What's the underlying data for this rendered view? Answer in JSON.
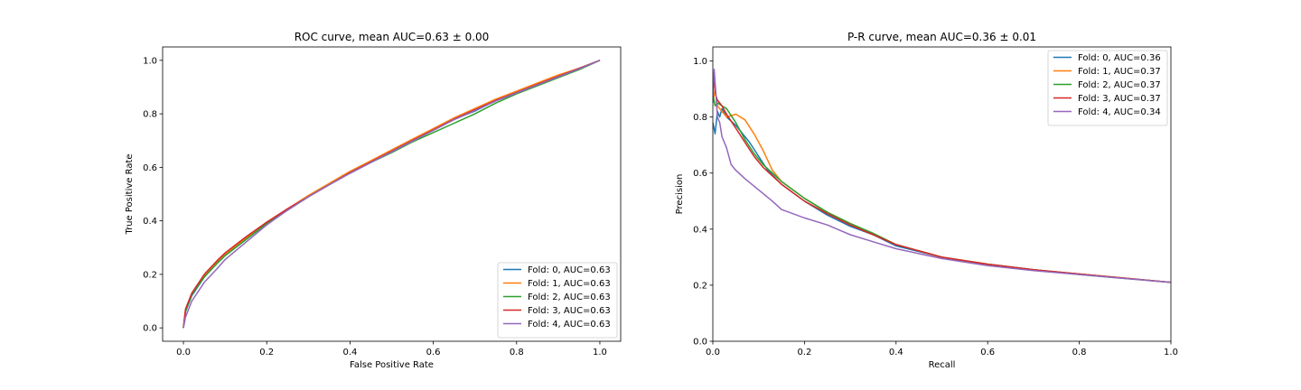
{
  "chart_data": [
    {
      "type": "line",
      "title": "ROC curve, mean AUC=0.63 ± 0.00",
      "xlabel": "False Positive Rate",
      "ylabel": "True Positive Rate",
      "xlim": [
        -0.05,
        1.05
      ],
      "ylim": [
        -0.05,
        1.05
      ],
      "xticks": [
        "0.0",
        "0.2",
        "0.4",
        "0.6",
        "0.8",
        "1.0"
      ],
      "yticks": [
        "0.0",
        "0.2",
        "0.4",
        "0.6",
        "0.8",
        "1.0"
      ],
      "grid": false,
      "legend_position": "lower-right",
      "series": [
        {
          "name": "Fold: 0, AUC=0.63",
          "color": "#1f77b4",
          "x": [
            0,
            0.005,
            0.02,
            0.05,
            0.08,
            0.1,
            0.15,
            0.2,
            0.25,
            0.3,
            0.35,
            0.4,
            0.45,
            0.5,
            0.55,
            0.6,
            0.65,
            0.7,
            0.75,
            0.8,
            0.85,
            0.9,
            0.95,
            1.0
          ],
          "y": [
            0,
            0.06,
            0.12,
            0.19,
            0.24,
            0.27,
            0.33,
            0.39,
            0.44,
            0.49,
            0.535,
            0.58,
            0.62,
            0.66,
            0.7,
            0.74,
            0.78,
            0.81,
            0.85,
            0.88,
            0.91,
            0.94,
            0.97,
            1.0
          ]
        },
        {
          "name": "Fold: 1, AUC=0.63",
          "color": "#ff7f0e",
          "x": [
            0,
            0.005,
            0.02,
            0.05,
            0.08,
            0.1,
            0.15,
            0.2,
            0.25,
            0.3,
            0.35,
            0.4,
            0.45,
            0.5,
            0.55,
            0.6,
            0.65,
            0.7,
            0.75,
            0.8,
            0.85,
            0.9,
            0.95,
            1.0
          ],
          "y": [
            0,
            0.065,
            0.125,
            0.195,
            0.245,
            0.275,
            0.335,
            0.395,
            0.445,
            0.495,
            0.54,
            0.585,
            0.625,
            0.665,
            0.705,
            0.745,
            0.785,
            0.82,
            0.855,
            0.885,
            0.915,
            0.945,
            0.97,
            1.0
          ]
        },
        {
          "name": "Fold: 2, AUC=0.63",
          "color": "#2ca02c",
          "x": [
            0,
            0.005,
            0.02,
            0.05,
            0.08,
            0.1,
            0.15,
            0.2,
            0.25,
            0.3,
            0.35,
            0.4,
            0.45,
            0.5,
            0.55,
            0.6,
            0.65,
            0.7,
            0.75,
            0.8,
            0.85,
            0.9,
            0.95,
            1.0
          ],
          "y": [
            0,
            0.06,
            0.125,
            0.19,
            0.24,
            0.27,
            0.33,
            0.39,
            0.44,
            0.49,
            0.535,
            0.578,
            0.618,
            0.655,
            0.695,
            0.73,
            0.765,
            0.8,
            0.84,
            0.875,
            0.905,
            0.935,
            0.965,
            1.0
          ]
        },
        {
          "name": "Fold: 3, AUC=0.63",
          "color": "#d62728",
          "x": [
            0,
            0.005,
            0.02,
            0.05,
            0.08,
            0.1,
            0.15,
            0.2,
            0.25,
            0.3,
            0.35,
            0.4,
            0.45,
            0.5,
            0.55,
            0.6,
            0.65,
            0.7,
            0.75,
            0.8,
            0.85,
            0.9,
            0.95,
            1.0
          ],
          "y": [
            0,
            0.07,
            0.13,
            0.2,
            0.25,
            0.28,
            0.34,
            0.395,
            0.445,
            0.49,
            0.535,
            0.58,
            0.62,
            0.66,
            0.7,
            0.74,
            0.78,
            0.815,
            0.85,
            0.88,
            0.91,
            0.94,
            0.97,
            1.0
          ]
        },
        {
          "name": "Fold: 4, AUC=0.63",
          "color": "#9467bd",
          "x": [
            0,
            0.005,
            0.02,
            0.05,
            0.08,
            0.1,
            0.15,
            0.2,
            0.25,
            0.3,
            0.35,
            0.4,
            0.45,
            0.5,
            0.55,
            0.6,
            0.65,
            0.7,
            0.75,
            0.8,
            0.85,
            0.9,
            0.95,
            1.0
          ],
          "y": [
            0,
            0.04,
            0.1,
            0.17,
            0.22,
            0.255,
            0.32,
            0.385,
            0.44,
            0.49,
            0.535,
            0.578,
            0.618,
            0.658,
            0.698,
            0.738,
            0.778,
            0.812,
            0.848,
            0.878,
            0.908,
            0.938,
            0.968,
            1.0
          ]
        }
      ]
    },
    {
      "type": "line",
      "title": "P-R curve, mean AUC=0.36 ± 0.01",
      "xlabel": "Recall",
      "ylabel": "Precision",
      "xlim": [
        0.0,
        1.0
      ],
      "ylim": [
        0.0,
        1.05
      ],
      "xticks": [
        "0.0",
        "0.2",
        "0.4",
        "0.6",
        "0.8",
        "1.0"
      ],
      "yticks": [
        "0.0",
        "0.2",
        "0.4",
        "0.6",
        "0.8",
        "1.0"
      ],
      "grid": false,
      "legend_position": "upper-right",
      "series": [
        {
          "name": "Fold: 0, AUC=0.36",
          "color": "#1f77b4",
          "x": [
            0.0,
            0.005,
            0.01,
            0.015,
            0.02,
            0.03,
            0.05,
            0.08,
            0.1,
            0.12,
            0.15,
            0.2,
            0.25,
            0.3,
            0.35,
            0.4,
            0.5,
            0.6,
            0.7,
            0.8,
            0.9,
            1.0
          ],
          "y": [
            0.78,
            0.74,
            0.82,
            0.8,
            0.83,
            0.8,
            0.77,
            0.71,
            0.66,
            0.61,
            0.56,
            0.5,
            0.45,
            0.41,
            0.38,
            0.34,
            0.3,
            0.275,
            0.255,
            0.24,
            0.225,
            0.21
          ]
        },
        {
          "name": "Fold: 1, AUC=0.37",
          "color": "#ff7f0e",
          "x": [
            0.0,
            0.005,
            0.01,
            0.02,
            0.03,
            0.05,
            0.07,
            0.09,
            0.11,
            0.13,
            0.15,
            0.2,
            0.25,
            0.3,
            0.35,
            0.4,
            0.5,
            0.6,
            0.7,
            0.8,
            0.9,
            1.0
          ],
          "y": [
            0.85,
            0.9,
            0.84,
            0.82,
            0.8,
            0.81,
            0.79,
            0.74,
            0.68,
            0.61,
            0.57,
            0.51,
            0.46,
            0.42,
            0.385,
            0.345,
            0.3,
            0.275,
            0.255,
            0.24,
            0.225,
            0.21
          ]
        },
        {
          "name": "Fold: 2, AUC=0.37",
          "color": "#2ca02c",
          "x": [
            0.0,
            0.005,
            0.01,
            0.02,
            0.03,
            0.05,
            0.07,
            0.09,
            0.11,
            0.13,
            0.15,
            0.2,
            0.25,
            0.3,
            0.35,
            0.4,
            0.5,
            0.6,
            0.7,
            0.8,
            0.9,
            1.0
          ],
          "y": [
            0.88,
            0.84,
            0.85,
            0.84,
            0.83,
            0.78,
            0.72,
            0.67,
            0.63,
            0.6,
            0.57,
            0.51,
            0.46,
            0.42,
            0.385,
            0.345,
            0.3,
            0.275,
            0.255,
            0.238,
            0.224,
            0.21
          ]
        },
        {
          "name": "Fold: 3, AUC=0.37",
          "color": "#d62728",
          "x": [
            0.0,
            0.003,
            0.006,
            0.01,
            0.02,
            0.03,
            0.05,
            0.07,
            0.09,
            0.11,
            0.13,
            0.15,
            0.2,
            0.25,
            0.3,
            0.35,
            0.4,
            0.5,
            0.6,
            0.7,
            0.8,
            0.9,
            1.0
          ],
          "y": [
            0.9,
            0.93,
            0.88,
            0.86,
            0.84,
            0.81,
            0.76,
            0.71,
            0.66,
            0.62,
            0.59,
            0.56,
            0.5,
            0.455,
            0.415,
            0.38,
            0.345,
            0.3,
            0.275,
            0.255,
            0.24,
            0.225,
            0.21
          ]
        },
        {
          "name": "Fold: 4, AUC=0.34",
          "color": "#9467bd",
          "x": [
            0.0,
            0.003,
            0.006,
            0.01,
            0.015,
            0.02,
            0.03,
            0.04,
            0.05,
            0.07,
            0.1,
            0.13,
            0.15,
            0.2,
            0.25,
            0.3,
            0.35,
            0.4,
            0.5,
            0.6,
            0.7,
            0.8,
            0.9,
            1.0
          ],
          "y": [
            0.87,
            0.97,
            0.9,
            0.8,
            0.78,
            0.73,
            0.69,
            0.63,
            0.61,
            0.58,
            0.54,
            0.5,
            0.47,
            0.44,
            0.415,
            0.38,
            0.355,
            0.33,
            0.295,
            0.27,
            0.252,
            0.238,
            0.224,
            0.21
          ]
        }
      ]
    }
  ]
}
